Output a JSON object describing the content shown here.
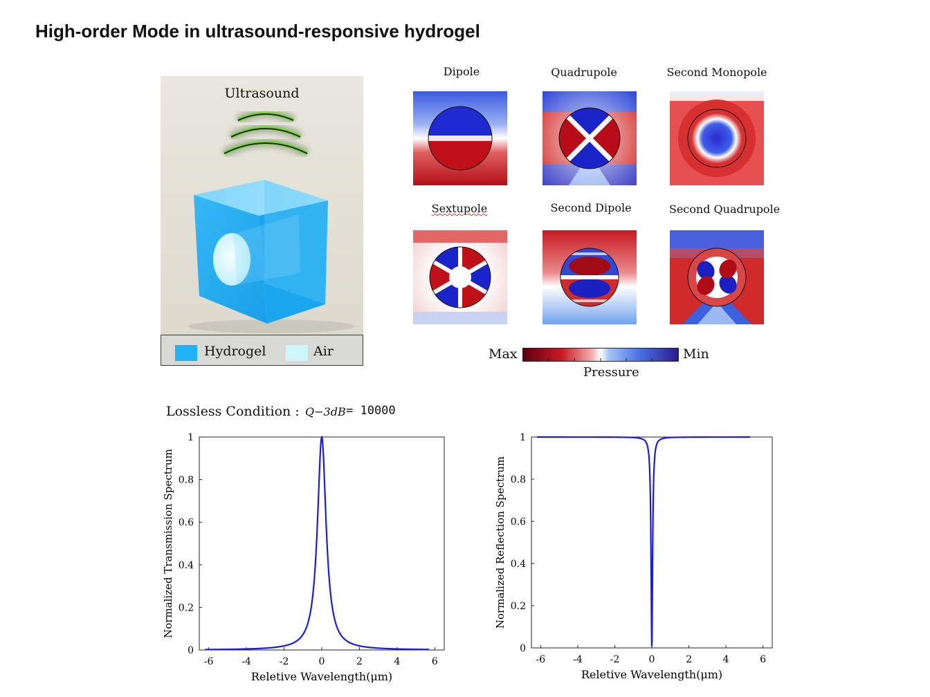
{
  "title": "High-order Mode in ultrasound-responsive hydrogel",
  "hydrogel_panel": {
    "ultrasound_label": "Ultrasound",
    "legend": [
      {
        "label": "Hydrogel",
        "color": "#1fb3f5"
      },
      {
        "label": "Air",
        "color": "#cdf5fb"
      }
    ]
  },
  "modes": [
    {
      "label": "Dipole",
      "type": "dipole"
    },
    {
      "label": "Quadrupole",
      "type": "quadrupole"
    },
    {
      "label": "Second Monopole",
      "type": "second-monopole"
    },
    {
      "label": "Sextupole",
      "type": "sextupole"
    },
    {
      "label": "Second Dipole",
      "type": "second-dipole"
    },
    {
      "label": "Second Quadrupole",
      "type": "second-quadrupole"
    }
  ],
  "colorbar": {
    "max_label": "Max",
    "min_label": "Min",
    "title": "Pressure",
    "colors": [
      "#5c0010",
      "#c81a22",
      "#ffffff",
      "#4a70e8",
      "#2a1a8c"
    ]
  },
  "condition": {
    "label": "Lossless Condition :",
    "q_symbol": "Q−3dB",
    "q_value": "= 10000"
  },
  "chart_data": [
    {
      "type": "line",
      "xlabel": "Reletive Wavelength(μm)",
      "ylabel": "Normalized Transmission Spectrum",
      "xlim": [
        -6.5,
        6.5
      ],
      "ylim": [
        0,
        1
      ],
      "xticks": [
        -6,
        -4,
        -2,
        0,
        2,
        4,
        6
      ],
      "yticks": [
        0,
        0.2,
        0.4,
        0.6,
        0.8,
        1
      ],
      "x_range": [
        -6.2,
        5.7
      ],
      "curve": "lorentzian",
      "center": 0,
      "half_width": 0.28,
      "color": "#1a1aee"
    },
    {
      "type": "line",
      "xlabel": "Reletive Wavelength(μm)",
      "ylabel": "Normalized Reflection Spectrum",
      "xlim": [
        -6.5,
        6.5
      ],
      "ylim": [
        0,
        1
      ],
      "xticks": [
        -6,
        -4,
        -2,
        0,
        2,
        4,
        6
      ],
      "yticks": [
        0,
        0.2,
        0.4,
        0.6,
        0.8,
        1
      ],
      "x_range": [
        -6.2,
        5.3
      ],
      "curve": "inverted-lorentzian",
      "center": 0,
      "half_width": 0.05,
      "color": "#1a1aee"
    }
  ]
}
